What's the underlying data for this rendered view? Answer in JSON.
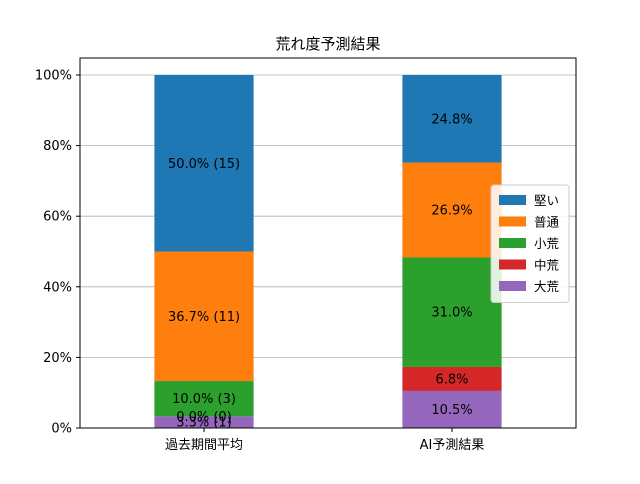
{
  "chart_data": {
    "type": "bar",
    "stacked": true,
    "title": "荒れ度予測結果",
    "xlabel": "",
    "ylabel": "",
    "ylim": [
      0,
      1
    ],
    "yticks": [
      "0%",
      "20%",
      "40%",
      "60%",
      "80%",
      "100%"
    ],
    "grid": "horizontal",
    "legend_position": "right",
    "categories": [
      "過去期間平均",
      "AI予測結果"
    ],
    "series": [
      {
        "name": "大荒",
        "color": "#9467bd",
        "values": [
          0.033,
          0.105
        ],
        "labels": [
          "3.3% (1)",
          "10.5%"
        ]
      },
      {
        "name": "中荒",
        "color": "#d62728",
        "values": [
          0.0,
          0.068
        ],
        "labels": [
          "0.0% (0)",
          "6.8%"
        ]
      },
      {
        "name": "小荒",
        "color": "#2ca02c",
        "values": [
          0.1,
          0.31
        ],
        "labels": [
          "10.0% (3)",
          "31.0%"
        ]
      },
      {
        "name": "普通",
        "color": "#ff7f0e",
        "values": [
          0.367,
          0.269
        ],
        "labels": [
          "36.7% (11)",
          "26.9%"
        ]
      },
      {
        "name": "堅い",
        "color": "#1f77b4",
        "values": [
          0.5,
          0.248
        ],
        "labels": [
          "50.0% (15)",
          "24.8%"
        ]
      }
    ],
    "legend_order": [
      "堅い",
      "普通",
      "小荒",
      "中荒",
      "大荒"
    ]
  }
}
